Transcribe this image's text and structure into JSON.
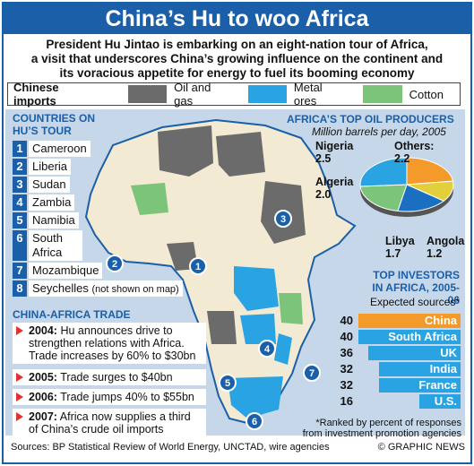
{
  "title": "China’s Hu to woo Africa",
  "subtitle_lines": [
    "President Hu Jintao is embarking on an eight-nation tour of Africa,",
    "a visit that underscores China’s growing influence on the continent and",
    "its voracious appetite for energy to fuel its booming economy"
  ],
  "legend": {
    "label": "Chinese imports",
    "items": [
      {
        "text": "Oil and gas",
        "color": "#6b6b6b"
      },
      {
        "text": "Metal ores",
        "color": "#2aa3e3"
      },
      {
        "text": "Cotton",
        "color": "#7cc47a"
      }
    ]
  },
  "tour": {
    "heading_line1": "COUNTRIES ON",
    "heading_line2": "HU’S TOUR",
    "countries": [
      {
        "num": "1",
        "name": "Cameroon"
      },
      {
        "num": "2",
        "name": "Liberia"
      },
      {
        "num": "3",
        "name": "Sudan"
      },
      {
        "num": "4",
        "name": "Zambia"
      },
      {
        "num": "5",
        "name": "Namibia"
      },
      {
        "num": "6",
        "name": "South Africa"
      },
      {
        "num": "7",
        "name": "Mozambique"
      },
      {
        "num": "8",
        "name": "Seychelles",
        "note": "(not shown on map)"
      }
    ]
  },
  "trade": {
    "heading": "CHINA-AFRICA TRADE",
    "items": [
      {
        "year": "2004:",
        "text": "Hu announces drive to strengthen relations with Africa. Trade increases by 60% to $30bn"
      },
      {
        "year": "2005:",
        "text": "Trade surges to $40bn"
      },
      {
        "year": "2006:",
        "text": "Trade jumps 40% to $55bn"
      },
      {
        "year": "2007:",
        "text": "Africa now supplies a third of China’s crude oil imports"
      }
    ]
  },
  "oil": {
    "heading": "AFRICA’S TOP OIL PRODUCERS",
    "subheading": "Million barrels per day, 2005",
    "slices": [
      {
        "name": "Nigeria",
        "value": "2.5",
        "color": "#2aa3e3"
      },
      {
        "name": "Others:",
        "value": "2.2",
        "color": "#f39a2b"
      },
      {
        "name": "Algeria",
        "value": "2.0",
        "color": "#7cc47a"
      },
      {
        "name": "Libya",
        "value": "1.7",
        "color": "#1b6fc0"
      },
      {
        "name": "Angola",
        "value": "1.2",
        "color": "#e2cf3a"
      }
    ]
  },
  "investors": {
    "heading_line1": "TOP INVESTORS",
    "heading_line2": "IN AFRICA, 2005-06",
    "subheading": "Expected sources*",
    "rows": [
      {
        "value": "40",
        "name": "China",
        "color": "#f39a2b"
      },
      {
        "value": "40",
        "name": "South Africa",
        "color": "#2aa3e3"
      },
      {
        "value": "36",
        "name": "UK",
        "color": "#2aa3e3"
      },
      {
        "value": "32",
        "name": "India",
        "color": "#2aa3e3"
      },
      {
        "value": "32",
        "name": "France",
        "color": "#2aa3e3"
      },
      {
        "value": "16",
        "name": "U.S.",
        "color": "#2aa3e3"
      }
    ],
    "footnote_line1": "*Ranked by percent of responses",
    "footnote_line2": "from investment promotion agencies"
  },
  "map_markers": [
    "1",
    "2",
    "3",
    "4",
    "5",
    "6",
    "7"
  ],
  "sources": "Sources: BP Statistical Review of World Energy, UNCTAD, wire agencies",
  "credit": "© GRAPHIC NEWS"
}
